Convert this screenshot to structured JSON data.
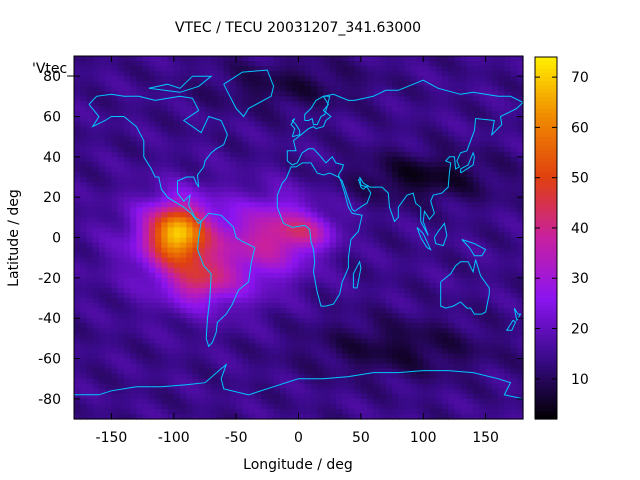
{
  "chart_data": {
    "type": "heatmap",
    "title": "VTEC / TECU 20031207_341.63000",
    "xlabel": "Longitude / deg",
    "ylabel": "Latitude / deg",
    "key_label": "'Vtec_",
    "xlim": [
      -180,
      180
    ],
    "ylim": [
      -90,
      90
    ],
    "x_ticks": [
      -150,
      -100,
      -50,
      0,
      50,
      100,
      150
    ],
    "y_ticks": [
      -80,
      -60,
      -40,
      -20,
      0,
      20,
      40,
      60,
      80
    ],
    "colorbar": {
      "range": [
        2,
        74
      ],
      "ticks": [
        10,
        20,
        30,
        40,
        50,
        60,
        70
      ],
      "palette": [
        "#000000",
        "#3a0a8a",
        "#8c14f0",
        "#c820a0",
        "#e04010",
        "#f08a00",
        "#fff000"
      ]
    },
    "grid": {
      "lon_step": 5,
      "lat_step": 2.5
    },
    "field_model": {
      "background": 14,
      "features": [
        {
          "name": "equatorial anomaly peak",
          "lon": -98,
          "lat": 2,
          "value": 70
        },
        {
          "name": "southern crest",
          "lon": -80,
          "lat": -22,
          "value": 52
        },
        {
          "name": "east Atlantic extension",
          "lon": -15,
          "lat": 2,
          "value": 42
        },
        {
          "name": "western Africa",
          "lon": 10,
          "lat": 3,
          "value": 36
        },
        {
          "name": "polar minimum north",
          "lon": 100,
          "lat": 30,
          "value": 5
        },
        {
          "name": "high-latitude minimum south",
          "lon": 80,
          "lat": -55,
          "value": 7
        }
      ]
    },
    "coastline_color": "#00c8ff"
  }
}
